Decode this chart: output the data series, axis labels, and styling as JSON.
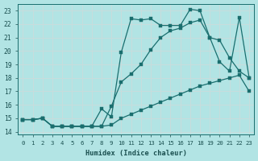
{
  "xlabel": "Humidex (Indice chaleur)",
  "background_color": "#b2e4e4",
  "grid_color": "#c8dcdc",
  "line_color": "#1a6e6e",
  "xlim": [
    -0.5,
    23.5
  ],
  "ylim": [
    13.8,
    23.5
  ],
  "xticks": [
    0,
    1,
    2,
    3,
    4,
    5,
    6,
    7,
    8,
    9,
    10,
    11,
    12,
    13,
    14,
    15,
    16,
    17,
    18,
    19,
    20,
    21,
    22,
    23
  ],
  "yticks": [
    14,
    15,
    16,
    17,
    18,
    19,
    20,
    21,
    22,
    23
  ],
  "line1_x": [
    0,
    1,
    2,
    3,
    4,
    5,
    6,
    7,
    8,
    9,
    10,
    11,
    12,
    13,
    14,
    15,
    16,
    17,
    18,
    19,
    20,
    21,
    22,
    23
  ],
  "line1_y": [
    14.9,
    14.9,
    15.0,
    14.4,
    14.4,
    14.4,
    14.4,
    14.4,
    14.4,
    14.5,
    15.0,
    15.3,
    15.6,
    15.9,
    16.2,
    16.5,
    16.8,
    17.1,
    17.4,
    17.6,
    17.8,
    18.0,
    18.2,
    17.0
  ],
  "line2_x": [
    0,
    1,
    2,
    3,
    4,
    5,
    6,
    7,
    8,
    9,
    10,
    11,
    12,
    13,
    14,
    15,
    16,
    17,
    18,
    19,
    20,
    21,
    22,
    23
  ],
  "line2_y": [
    14.9,
    14.9,
    15.0,
    14.4,
    14.4,
    14.4,
    14.4,
    14.4,
    14.4,
    15.9,
    17.7,
    18.3,
    19.0,
    20.1,
    21.0,
    21.5,
    21.7,
    22.1,
    22.3,
    21.0,
    20.8,
    19.5,
    18.5,
    18.0
  ],
  "line3_x": [
    0,
    1,
    2,
    3,
    4,
    5,
    6,
    7,
    8,
    9,
    10,
    11,
    12,
    13,
    14,
    15,
    16,
    17,
    18,
    19,
    20,
    21,
    22,
    23
  ],
  "line3_y": [
    14.9,
    14.9,
    15.0,
    14.4,
    14.4,
    14.4,
    14.4,
    14.4,
    15.7,
    15.1,
    19.9,
    22.4,
    22.3,
    22.4,
    21.9,
    21.9,
    21.9,
    23.1,
    23.0,
    21.0,
    19.2,
    18.5,
    22.5,
    18.0
  ]
}
